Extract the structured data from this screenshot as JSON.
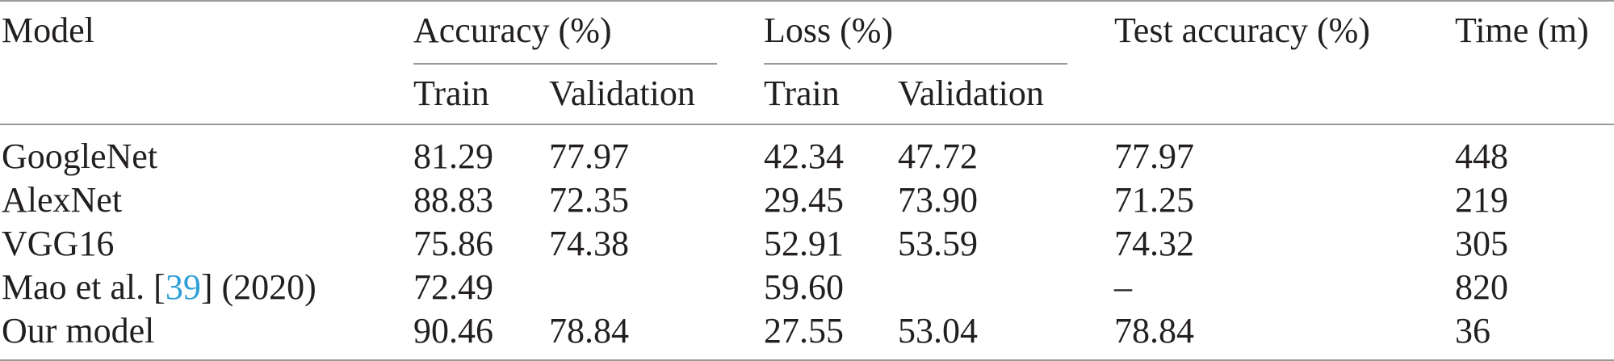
{
  "header": {
    "model": "Model",
    "accuracy": "Accuracy (%)",
    "loss": "Loss (%)",
    "test_accuracy": "Test accuracy (%)",
    "time": "Time (m)",
    "acc_train": "Train",
    "acc_validation": "Validation",
    "loss_train": "Train",
    "loss_validation": "Validation"
  },
  "rows": [
    {
      "model": "GoogleNet",
      "acc_train": "81.29",
      "acc_val": "77.97",
      "loss_train": "42.34",
      "loss_val": "47.72",
      "test_acc": "77.97",
      "time": "448"
    },
    {
      "model": "AlexNet",
      "acc_train": "88.83",
      "acc_val": "72.35",
      "loss_train": "29.45",
      "loss_val": "73.90",
      "test_acc": "71.25",
      "time": "219"
    },
    {
      "model": "VGG16",
      "acc_train": "75.86",
      "acc_val": "74.38",
      "loss_train": "52.91",
      "loss_val": "53.59",
      "test_acc": "74.32",
      "time": "305"
    },
    {
      "model_prefix": "Mao et al. [",
      "model_ref": "39",
      "model_suffix": "] (2020)",
      "acc_train": "72.49",
      "acc_val": "",
      "loss_train": "59.60",
      "loss_val": "",
      "test_acc": "–",
      "time": "820"
    },
    {
      "model": "Our model",
      "acc_train": "90.46",
      "acc_val": "78.84",
      "loss_train": "27.55",
      "loss_val": "53.04",
      "test_acc": "78.84",
      "time": "36"
    }
  ],
  "colors": {
    "text": "#231f20",
    "link": "#2f9fd8",
    "rule": "#9a9a9a"
  }
}
